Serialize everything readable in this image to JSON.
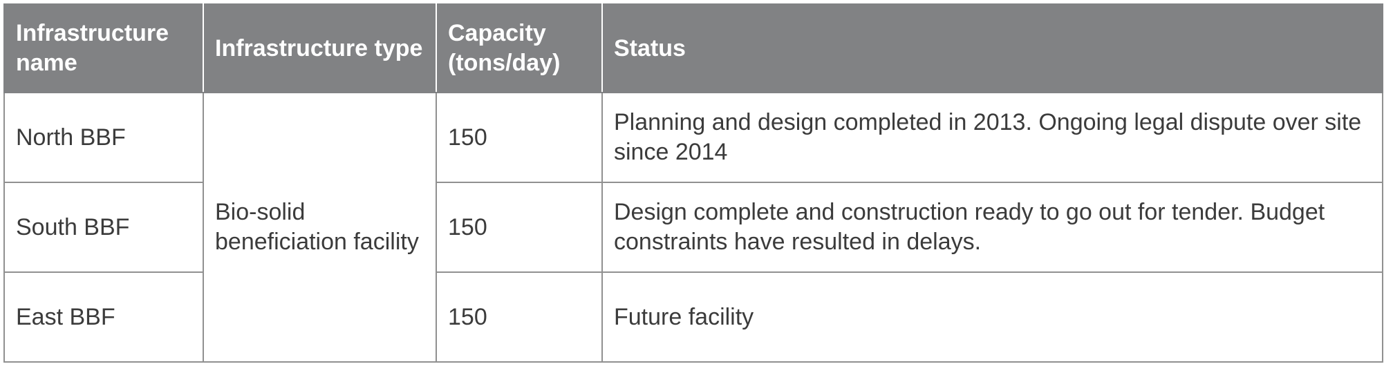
{
  "table": {
    "headers": [
      "Infrastructure name",
      "Infrastructure type",
      "Capacity (tons/day)",
      "Status"
    ],
    "merged_type": "Bio-solid beneficiation facility",
    "rows": [
      {
        "name": "North BBF",
        "capacity": "150",
        "status": "Planning and design completed in 2013. Ongoing legal dispute over site since 2014"
      },
      {
        "name": "South BBF",
        "capacity": "150",
        "status": "Design complete and construction ready to go out for tender. Budget constraints have resulted in delays."
      },
      {
        "name": "East BBF",
        "capacity": "150",
        "status": "Future facility"
      }
    ]
  }
}
